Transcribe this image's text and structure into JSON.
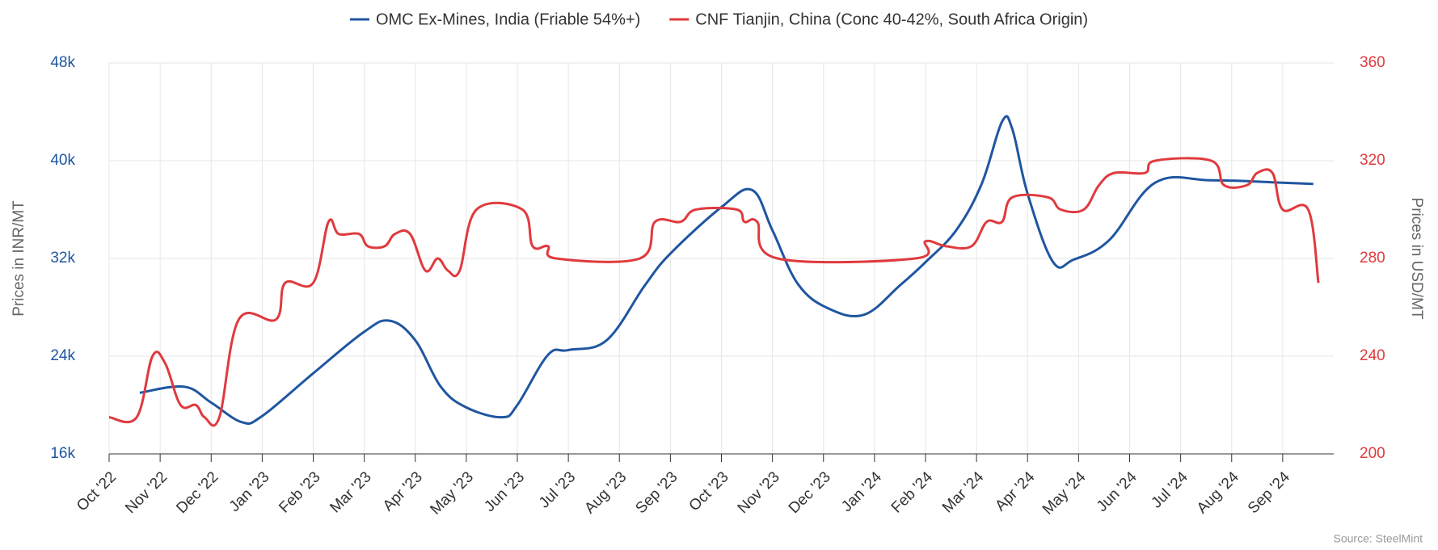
{
  "chart_data": {
    "type": "line",
    "source": "Source: SteelMint",
    "ylabel": "Prices in INR/MT",
    "y2label": "Prices in USD/MT",
    "grid": true,
    "legend": "top",
    "xlim": [
      0,
      24
    ],
    "xticks": [
      {
        "value": 0,
        "label": "Oct '22"
      },
      {
        "value": 1,
        "label": "Nov '22"
      },
      {
        "value": 2,
        "label": "Dec '22"
      },
      {
        "value": 3,
        "label": "Jan '23"
      },
      {
        "value": 4,
        "label": "Feb '23"
      },
      {
        "value": 5,
        "label": "Mar '23"
      },
      {
        "value": 6,
        "label": "Apr '23"
      },
      {
        "value": 7,
        "label": "May '23"
      },
      {
        "value": 8,
        "label": "Jun '23"
      },
      {
        "value": 9,
        "label": "Jul '23"
      },
      {
        "value": 10,
        "label": "Aug '23"
      },
      {
        "value": 11,
        "label": "Sep '23"
      },
      {
        "value": 12,
        "label": "Oct '23"
      },
      {
        "value": 13,
        "label": "Nov '23"
      },
      {
        "value": 14,
        "label": "Dec '23"
      },
      {
        "value": 15,
        "label": "Jan '24"
      },
      {
        "value": 16,
        "label": "Feb '24"
      },
      {
        "value": 17,
        "label": "Mar '24"
      },
      {
        "value": 18,
        "label": "Apr '24"
      },
      {
        "value": 19,
        "label": "May '24"
      },
      {
        "value": 20,
        "label": "Jun '24"
      },
      {
        "value": 21,
        "label": "Jul '24"
      },
      {
        "value": 22,
        "label": "Aug '24"
      },
      {
        "value": 23,
        "label": "Sep '24"
      }
    ],
    "ylim": [
      16000,
      48000
    ],
    "yticks": [
      {
        "value": 16000,
        "label": "16k"
      },
      {
        "value": 24000,
        "label": "24k"
      },
      {
        "value": 32000,
        "label": "32k"
      },
      {
        "value": 40000,
        "label": "40k"
      },
      {
        "value": 48000,
        "label": "48k"
      }
    ],
    "y2lim": [
      200,
      360
    ],
    "y2ticks": [
      200,
      240,
      280,
      320,
      360
    ],
    "series": [
      {
        "name": "OMC Ex-Mines, India (Friable 54%+)",
        "color": "#1f56a0",
        "x": [
          0.6,
          1.47,
          2.0,
          2.6,
          3.0,
          4.0,
          5.0,
          5.5,
          6.0,
          6.5,
          7.0,
          7.7,
          8.0,
          8.6,
          9.0,
          9.75,
          10.5,
          11.0,
          12.0,
          12.6,
          13.0,
          13.5,
          14.1,
          14.8,
          15.5,
          16.0,
          16.6,
          17.1,
          17.5,
          17.7,
          18.0,
          18.5,
          18.9,
          19.6,
          20.5,
          21.6,
          23.0,
          23.6
        ],
        "values": [
          21000,
          21500,
          20200,
          18600,
          19100,
          22600,
          26000,
          26900,
          25300,
          21500,
          19800,
          19000,
          20000,
          24100,
          24500,
          25300,
          29800,
          32400,
          36200,
          37600,
          34300,
          29900,
          27900,
          27400,
          29800,
          31700,
          34300,
          38100,
          43200,
          42600,
          37300,
          31700,
          31900,
          33500,
          38200,
          38400,
          38200,
          38100
        ]
      },
      {
        "name": "CNF Tianjin, China (Conc 40-42%, South Africa Origin)",
        "color": "#e03a3e",
        "axis": "y2",
        "x": [
          0,
          0.54,
          0.85,
          1.1,
          1.4,
          1.7,
          1.87,
          2.16,
          2.54,
          3.27,
          3.45,
          4.0,
          4.3,
          4.5,
          4.9,
          5.07,
          5.4,
          5.6,
          5.9,
          6.2,
          6.44,
          6.64,
          6.87,
          7.2,
          8.1,
          8.3,
          8.6,
          8.76,
          10.4,
          10.7,
          11.2,
          11.5,
          12.3,
          12.45,
          12.7,
          13.1,
          15.8,
          16.0,
          16.4,
          16.9,
          17.2,
          17.5,
          17.7,
          18.4,
          18.65,
          19.1,
          19.4,
          19.7,
          20.3,
          20.5,
          21.6,
          21.85,
          22.3,
          22.5,
          22.8,
          23.0,
          23.5,
          23.7
        ],
        "values": [
          215,
          215,
          240,
          237,
          220,
          220,
          215,
          215,
          255,
          255,
          270,
          270,
          295,
          290,
          290,
          285,
          285,
          290,
          290,
          275,
          280,
          275,
          275,
          300,
          300,
          285,
          285,
          280,
          280,
          295,
          295,
          300,
          300,
          295,
          295,
          280,
          280,
          287,
          285,
          285,
          295,
          295,
          305,
          305,
          300,
          300,
          310,
          315,
          315,
          320,
          320,
          310,
          310,
          315,
          315,
          300,
          300,
          270
        ]
      }
    ]
  }
}
